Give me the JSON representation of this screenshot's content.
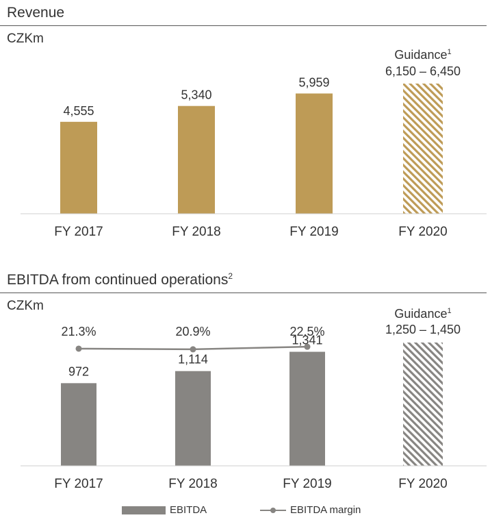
{
  "chart_data": [
    {
      "type": "bar",
      "title": "Revenue",
      "title_sup": "",
      "unit": "CZKm",
      "categories": [
        "FY 2017",
        "FY 2018",
        "FY 2019",
        "FY 2020"
      ],
      "values": [
        4555,
        5340,
        5959,
        null
      ],
      "value_labels": [
        "4,555",
        "5,340",
        "5,959",
        ""
      ],
      "guidance": {
        "label": "Guidance",
        "sup": "1",
        "range_label": "6,150 – 6,450",
        "low": 6150,
        "high": 6450
      },
      "ylim": [
        0,
        6450
      ],
      "colors": {
        "bar": "#BE9B56",
        "hatch": "#BE9B56"
      }
    },
    {
      "type": "bar",
      "title": "EBITDA from continued operations",
      "title_sup": "2",
      "unit": "CZKm",
      "categories": [
        "FY 2017",
        "FY 2018",
        "FY 2019",
        "FY 2020"
      ],
      "series": [
        {
          "name": "EBITDA",
          "values": [
            972,
            1114,
            1341,
            null
          ],
          "labels": [
            "972",
            "1,114",
            "1,341",
            ""
          ]
        },
        {
          "name": "EBITDA margin",
          "values": [
            21.3,
            20.9,
            22.5,
            null
          ],
          "labels": [
            "21.3%",
            "20.9%",
            "22.5%",
            ""
          ],
          "type": "line"
        }
      ],
      "guidance": {
        "label": "Guidance",
        "sup": "1",
        "range_label": "1,250 – 1,450",
        "low": 1250,
        "high": 1450
      },
      "ylim": [
        0,
        1450
      ],
      "colors": {
        "bar": "#878582",
        "hatch": "#878582",
        "line": "#878582"
      }
    }
  ]
}
